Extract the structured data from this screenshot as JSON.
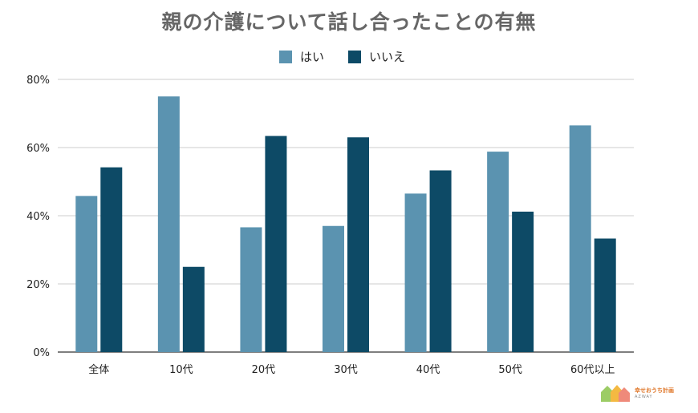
{
  "chart_data": {
    "type": "bar",
    "title": "親の介護について話し合ったことの有無",
    "categories": [
      "全体",
      "10代",
      "20代",
      "30代",
      "40代",
      "50代",
      "60代以上"
    ],
    "series": [
      {
        "name": "はい",
        "values": [
          45.8,
          75.0,
          36.6,
          37.0,
          46.5,
          58.8,
          66.5
        ],
        "color": "#5b93b0"
      },
      {
        "name": "いいえ",
        "values": [
          54.2,
          25.0,
          63.4,
          63.0,
          53.3,
          41.2,
          33.3
        ],
        "color": "#0d4a66"
      }
    ],
    "ylim": [
      0,
      80
    ],
    "yticks": [
      "0%",
      "20%",
      "40%",
      "60%",
      "80%"
    ],
    "grid": true,
    "legend_position": "top-center",
    "xlabel": "",
    "ylabel": ""
  },
  "logo": {
    "line1": "幸せおうち計画",
    "line2": "AZWAY"
  }
}
